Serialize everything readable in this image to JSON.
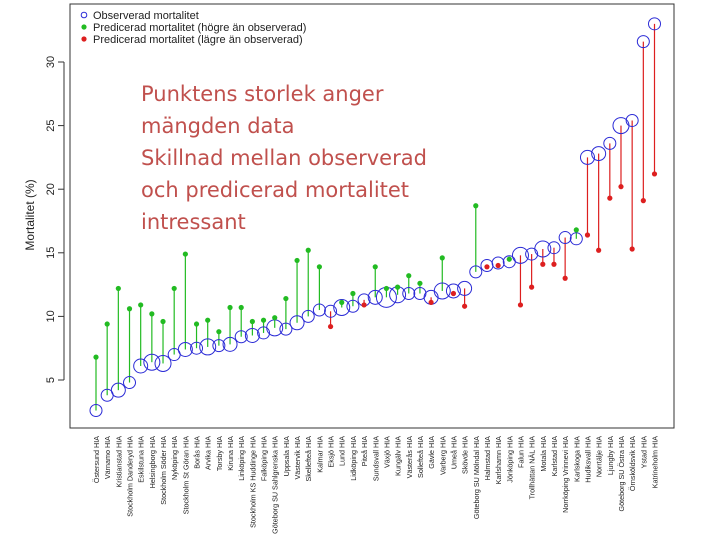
{
  "annotation": {
    "lines": [
      "Punktens storlek anger",
      "mängden data",
      "Skillnad mellan observerad",
      "och predicerad mortalitet",
      "intressant"
    ]
  },
  "colors": {
    "observed": "#2b2bd6",
    "higher": "#22bb22",
    "lower": "#dd1f1f",
    "axis": "#333333"
  },
  "chart_data": {
    "type": "scatter",
    "ylabel": "Mortalitet (%)",
    "ylim": [
      2,
      33
    ],
    "yticks": [
      5,
      10,
      15,
      20,
      25,
      30
    ],
    "legend_position": "top-left",
    "legend": [
      {
        "key": "observed",
        "label": "Observerad mortalitet"
      },
      {
        "key": "higher",
        "label": "Predicerad mortalitet (högre än observerad)"
      },
      {
        "key": "lower",
        "label": "Predicerad mortalitet (lägre än observerad)"
      }
    ],
    "categories": [
      "Östersund HIA",
      "Värnamo HIA",
      "Kristianstad HIA",
      "Stockholm Danderyd HIA",
      "Eskilstuna HIA",
      "Helsingborg HIA",
      "Stockholm Söder HIA",
      "Nyköping HIA",
      "Stockholm St Göran HIA",
      "Borås HIA",
      "Arvika HIA",
      "Torsby HIA",
      "Kiruna HIA",
      "Linköping HIA",
      "Stockholm KS Huddinge HIA",
      "Falköping HIA",
      "Göteborg SU Sahlgrenska HIA",
      "Uppsala HIA",
      "Västervik HIA",
      "Skellefteå HIA",
      "Kalmar HIA",
      "Eksjö HIA",
      "Lund HIA",
      "Lidköping HIA",
      "Piteå HIA",
      "Sundsvall HIA",
      "Växjö HIA",
      "Kungälv HIA",
      "Västerås HIA",
      "Sollefteå HIA",
      "Gävle HIA",
      "Varberg HIA",
      "Umeå HIA",
      "Skövde HIA",
      "Göteborg SU Mölndal HIA",
      "Halmstad HIA",
      "Karlshamn HIA",
      "Jönköping HIA",
      "Falun HIA",
      "Trollhättan NÄL HIA",
      "Motala HIA",
      "Karlstad HIA",
      "Norrköping Vrinnevi HIA",
      "Karlskoga HIA",
      "Hudiksvall HIA",
      "Norrtälje HIA",
      "Ljungby HIA",
      "Göteborg SU Östra HIA",
      "Örnsköldsvik HIA",
      "Ystad HIA",
      "Katrineholm HIA"
    ],
    "series": [
      {
        "name": "Observerad mortalitet",
        "key": "observed",
        "values": [
          2.6,
          3.8,
          4.2,
          4.8,
          6.1,
          6.4,
          6.3,
          7.0,
          7.4,
          7.5,
          7.6,
          7.7,
          7.8,
          8.4,
          8.5,
          8.7,
          9.1,
          9.0,
          9.5,
          10.0,
          10.5,
          10.4,
          10.7,
          10.8,
          11.3,
          11.5,
          11.5,
          11.7,
          11.8,
          11.8,
          11.5,
          12.0,
          12.0,
          12.2,
          13.5,
          14.0,
          14.2,
          14.3,
          14.8,
          14.9,
          15.3,
          15.4,
          16.2,
          16.1,
          22.5,
          22.8,
          23.6,
          25.0,
          25.4,
          31.6,
          33.0
        ]
      },
      {
        "name": "Predicerad mortalitet",
        "key": "predicted",
        "values": [
          6.8,
          9.4,
          12.2,
          10.6,
          10.9,
          10.2,
          9.6,
          12.2,
          14.9,
          9.4,
          9.7,
          8.8,
          10.7,
          10.7,
          9.6,
          9.7,
          9.9,
          11.4,
          14.4,
          15.2,
          13.9,
          9.2,
          11.1,
          11.8,
          10.9,
          13.9,
          12.2,
          12.3,
          13.2,
          12.6,
          11.1,
          14.6,
          11.8,
          10.8,
          18.7,
          13.9,
          14.0,
          14.5,
          10.9,
          12.3,
          14.1,
          14.1,
          13.0,
          16.8,
          16.4,
          15.2,
          19.3,
          20.2,
          15.3,
          19.1,
          21.2
        ]
      }
    ]
  }
}
